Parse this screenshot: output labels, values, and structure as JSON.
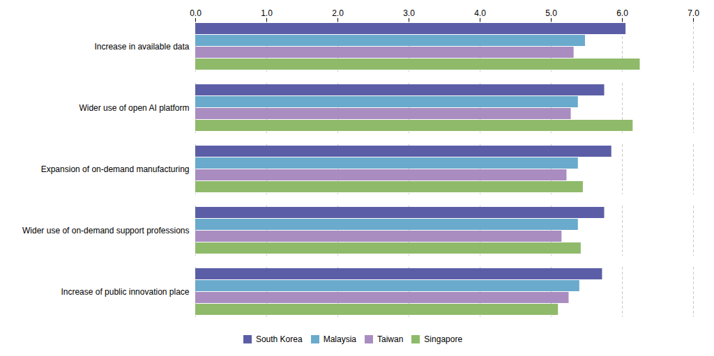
{
  "chart_data": {
    "type": "bar",
    "orientation": "horizontal",
    "categories": [
      "Increase in available data",
      "Wider use of open AI platform",
      "Expansion of on-demand manufacturing",
      "Wider use of on-demand support professions",
      "Increase of public innovation place"
    ],
    "series": [
      {
        "name": "South Korea",
        "color": "#5b5ea6",
        "values": [
          6.05,
          5.75,
          5.85,
          5.75,
          5.72
        ]
      },
      {
        "name": "Malaysia",
        "color": "#6aaacc",
        "values": [
          5.48,
          5.38,
          5.38,
          5.38,
          5.4
        ]
      },
      {
        "name": "Taiwan",
        "color": "#a98dc0",
        "values": [
          5.32,
          5.28,
          5.22,
          5.15,
          5.25
        ]
      },
      {
        "name": "Singapore",
        "color": "#8fba6a",
        "values": [
          6.25,
          6.15,
          5.45,
          5.42,
          5.1
        ]
      }
    ],
    "xlim": [
      0,
      7
    ],
    "xticks": [
      0,
      1,
      2,
      3,
      4,
      5,
      6,
      7
    ],
    "grid": true,
    "legend": "bottom"
  }
}
